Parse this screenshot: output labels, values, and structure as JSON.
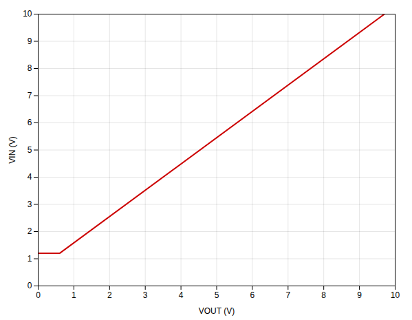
{
  "chart_data": {
    "type": "line",
    "x": [
      0.0,
      0.6,
      9.7
    ],
    "values": [
      1.2,
      1.2,
      10.0
    ],
    "color": "#cc0000",
    "xlabel": "VOUT (V)",
    "ylabel": "VIN (V)",
    "xlim": [
      0,
      10
    ],
    "ylim": [
      0,
      10
    ],
    "xticks": [
      0,
      1,
      2,
      3,
      4,
      5,
      6,
      7,
      8,
      9,
      10
    ],
    "yticks": [
      0,
      1,
      2,
      3,
      4,
      5,
      6,
      7,
      8,
      9,
      10
    ],
    "grid": true
  }
}
